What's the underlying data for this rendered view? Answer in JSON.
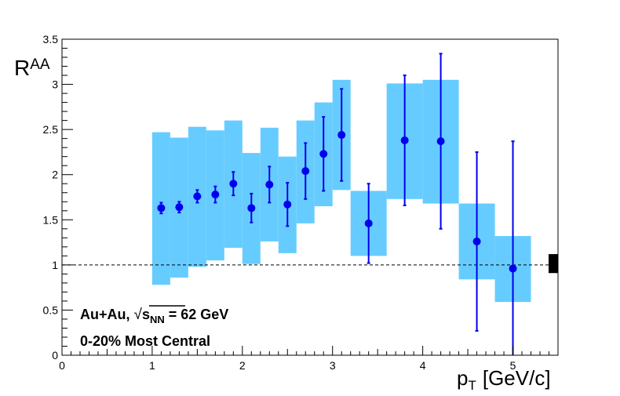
{
  "chart_data": {
    "type": "scatter",
    "title": "",
    "xlabel": "p",
    "xlabel_sub": "T",
    "xlabel_unit": "[GeV/c]",
    "ylabel": "R",
    "ylabel_sub": "AA",
    "xlim": [
      0,
      5.5
    ],
    "ylim": [
      0,
      3.5
    ],
    "x_ticks": [
      0,
      1,
      2,
      3,
      4,
      5
    ],
    "x_tick_labels": [
      "0",
      "1",
      "2",
      "3",
      "4",
      "5"
    ],
    "y_ticks": [
      0,
      0.5,
      1,
      1.5,
      2,
      2.5,
      3,
      3.5
    ],
    "y_tick_labels": [
      "0",
      "0.5",
      "1",
      "1.5",
      "2",
      "2.5",
      "3",
      "3.5"
    ],
    "reference_line": 1.0,
    "normalization_box": {
      "y_low": 0.91,
      "y_high": 1.12
    },
    "colors": {
      "points": "#0000ee",
      "systematic_band": "#66ccff",
      "reference_line": "#000000"
    },
    "points": [
      {
        "x": 1.1,
        "y": 1.63,
        "err": 0.06
      },
      {
        "x": 1.3,
        "y": 1.64,
        "err": 0.06
      },
      {
        "x": 1.5,
        "y": 1.76,
        "err": 0.07
      },
      {
        "x": 1.7,
        "y": 1.78,
        "err": 0.09
      },
      {
        "x": 1.9,
        "y": 1.9,
        "err": 0.13
      },
      {
        "x": 2.1,
        "y": 1.63,
        "err": 0.16
      },
      {
        "x": 2.3,
        "y": 1.89,
        "err": 0.2
      },
      {
        "x": 2.5,
        "y": 1.67,
        "err": 0.24
      },
      {
        "x": 2.7,
        "y": 2.04,
        "err": 0.31
      },
      {
        "x": 2.9,
        "y": 2.23,
        "err": 0.41
      },
      {
        "x": 3.1,
        "y": 2.44,
        "err": 0.51
      },
      {
        "x": 3.4,
        "y": 1.46,
        "err": 0.44
      },
      {
        "x": 3.8,
        "y": 2.38,
        "err": 0.72
      },
      {
        "x": 4.2,
        "y": 2.37,
        "err": 0.97
      },
      {
        "x": 4.6,
        "y": 1.26,
        "err": 0.99
      },
      {
        "x": 5.0,
        "y": 0.96,
        "err": 1.41
      }
    ],
    "systematics": [
      {
        "x_low": 1.0,
        "x_high": 1.2,
        "y_low": 0.78,
        "y_high": 2.47
      },
      {
        "x_low": 1.2,
        "x_high": 1.4,
        "y_low": 0.86,
        "y_high": 2.41
      },
      {
        "x_low": 1.4,
        "x_high": 1.6,
        "y_low": 0.98,
        "y_high": 2.53
      },
      {
        "x_low": 1.6,
        "x_high": 1.8,
        "y_low": 1.05,
        "y_high": 2.49
      },
      {
        "x_low": 1.8,
        "x_high": 2.0,
        "y_low": 1.19,
        "y_high": 2.6
      },
      {
        "x_low": 2.0,
        "x_high": 2.2,
        "y_low": 1.01,
        "y_high": 2.24
      },
      {
        "x_low": 2.2,
        "x_high": 2.4,
        "y_low": 1.26,
        "y_high": 2.52
      },
      {
        "x_low": 2.4,
        "x_high": 2.6,
        "y_low": 1.13,
        "y_high": 2.2
      },
      {
        "x_low": 2.6,
        "x_high": 2.8,
        "y_low": 1.46,
        "y_high": 2.6
      },
      {
        "x_low": 2.8,
        "x_high": 3.0,
        "y_low": 1.65,
        "y_high": 2.8
      },
      {
        "x_low": 3.0,
        "x_high": 3.2,
        "y_low": 1.83,
        "y_high": 3.05
      },
      {
        "x_low": 3.2,
        "x_high": 3.6,
        "y_low": 1.1,
        "y_high": 1.82
      },
      {
        "x_low": 3.6,
        "x_high": 4.0,
        "y_low": 1.73,
        "y_high": 3.01
      },
      {
        "x_low": 4.0,
        "x_high": 4.4,
        "y_low": 1.68,
        "y_high": 3.05
      },
      {
        "x_low": 4.4,
        "x_high": 4.8,
        "y_low": 0.84,
        "y_high": 1.68
      },
      {
        "x_low": 4.8,
        "x_high": 5.2,
        "y_low": 0.59,
        "y_high": 1.32
      }
    ],
    "annotations": {
      "line1_prefix": "Au+Au, ",
      "line1_sqrt": "√",
      "line1_s": "s",
      "line1_sub": "NN",
      "line1_suffix": " = 62 GeV",
      "line2": "0-20% Most Central"
    }
  }
}
